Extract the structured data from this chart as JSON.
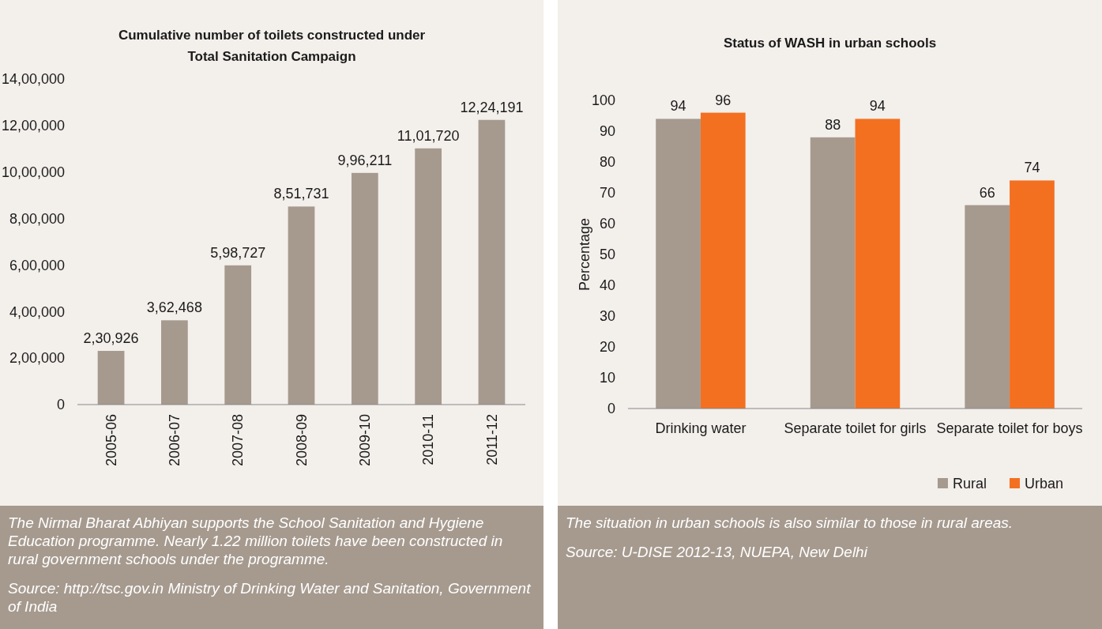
{
  "chart_data": [
    {
      "type": "bar",
      "title": "Cumulative number of toilets constructed under Total Sanitation Campaign",
      "categories": [
        "2005-06",
        "2006-07",
        "2007-08",
        "2008-09",
        "2009-10",
        "2010-11",
        "2011-12"
      ],
      "values": [
        230926,
        362468,
        598727,
        851731,
        996211,
        1101720,
        1224191
      ],
      "value_labels": [
        "2,30,926",
        "3,62,468",
        "5,98,727",
        "8,51,731",
        "9,96,211",
        "11,01,720",
        "12,24,191"
      ],
      "color": "#a69a8f",
      "ylim": [
        0,
        1400000
      ],
      "yticks": [
        0,
        {
          "value": 200000,
          "label": "2,00,000"
        },
        {
          "value": 400000,
          "label": "4,00,000"
        },
        {
          "value": 600000,
          "label": "6,00,000"
        },
        {
          "value": 800000,
          "label": "8,00,000"
        },
        {
          "value": 1000000,
          "label": "10,00,000"
        },
        {
          "value": 1200000,
          "label": "12,00,000"
        },
        {
          "value": 1400000,
          "label": "14,00,000"
        }
      ],
      "grid": false,
      "legend": false,
      "annotations": [
        "The Nirmal Bharat Abhiyan supports the School Sanitation and Hygiene Education programme. Nearly 1.22 million toilets have been constructed in rural government schools under the programme.",
        "Source: http://tsc.gov.in Ministry of Drinking Water and Sanitation, Government of India"
      ]
    },
    {
      "type": "bar",
      "title": "Status of WASH in urban schools",
      "categories": [
        "Drinking water",
        "Separate toilet for girls",
        "Separate toilet for boys"
      ],
      "series": [
        {
          "name": "Rural",
          "color": "#a69a8f",
          "values": [
            94,
            88,
            66
          ]
        },
        {
          "name": "Urban",
          "color": "#f37021",
          "values": [
            96,
            94,
            74
          ]
        }
      ],
      "ylabel": "Percentage",
      "ylim": [
        0,
        100
      ],
      "yticks": [
        0,
        10,
        20,
        30,
        40,
        50,
        60,
        70,
        80,
        90,
        100
      ],
      "data_labels": true,
      "grid": false,
      "legend": "bottom right",
      "annotations": [
        "The situation in urban schools is also similar to those in rural areas.",
        "Source: U-DISE 2012-13, NUEPA, New Delhi"
      ]
    }
  ]
}
